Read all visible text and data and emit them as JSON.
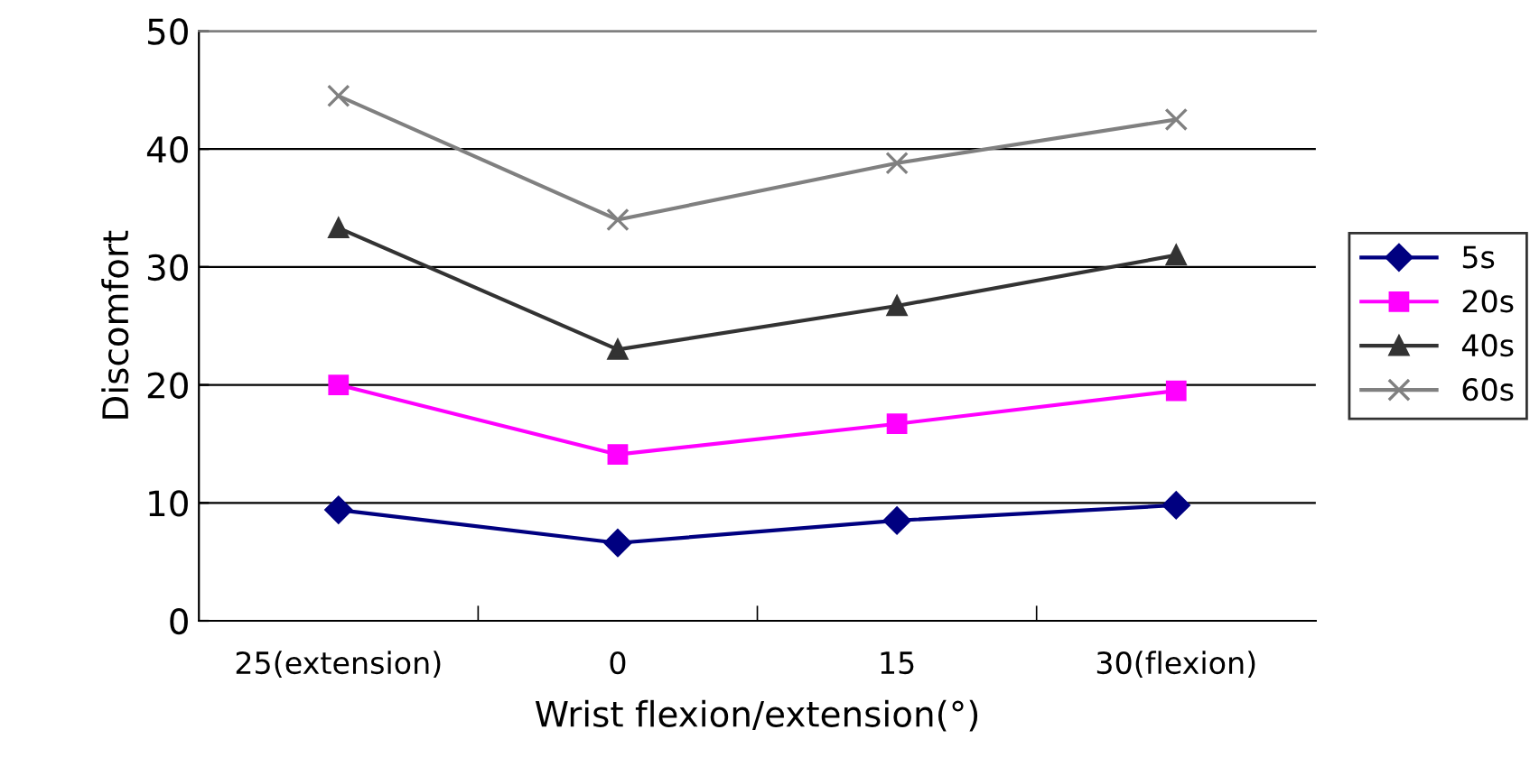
{
  "chart_data": {
    "type": "line",
    "xlabel": "Wrist flexion/extension(°)",
    "ylabel": "Discomfort",
    "categories": [
      "25(extension)",
      "0",
      "15",
      "30(flexion)"
    ],
    "series": [
      {
        "name": "5s",
        "color": "#000080",
        "marker": "diamond",
        "values": [
          9.4,
          6.6,
          8.5,
          9.8
        ]
      },
      {
        "name": "20s",
        "color": "#ff00ff",
        "marker": "square",
        "values": [
          20.0,
          14.1,
          16.7,
          19.5
        ]
      },
      {
        "name": "40s",
        "color": "#333333",
        "marker": "triangle",
        "values": [
          33.3,
          23.0,
          26.7,
          31.0
        ]
      },
      {
        "name": "60s",
        "color": "#808080",
        "marker": "cross",
        "values": [
          44.5,
          34.0,
          38.8,
          42.5
        ]
      }
    ],
    "ylim": [
      0,
      50
    ],
    "yticks": [
      0,
      10,
      20,
      30,
      40,
      50
    ],
    "grid": "y",
    "legend": "right"
  }
}
